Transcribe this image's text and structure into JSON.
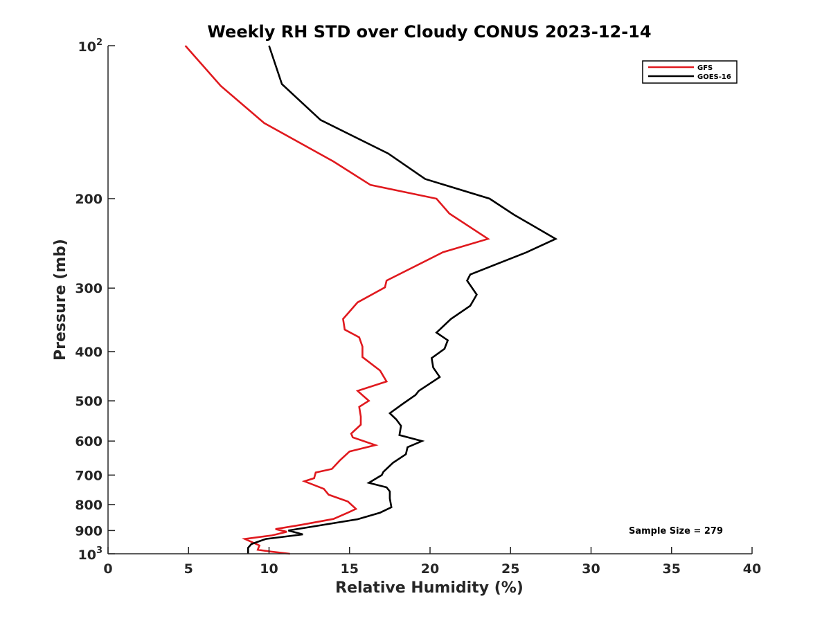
{
  "chart_data": {
    "type": "line",
    "title": "Weekly RH STD over Cloudy CONUS 2023-12-14",
    "xlabel": "Relative Humidity (%)",
    "ylabel": "Pressure (mb)",
    "xlim": [
      0,
      40
    ],
    "ylim": [
      100,
      1000
    ],
    "yscale": "log",
    "y_reversed": true,
    "grid": false,
    "legend_position": "top-right",
    "x_ticks": [
      0,
      5,
      10,
      15,
      20,
      25,
      30,
      35,
      40
    ],
    "x_tick_labels": [
      "0",
      "5",
      "10",
      "15",
      "20",
      "25",
      "30",
      "35",
      "40"
    ],
    "y_ticks": [
      {
        "value": 100,
        "base": "10",
        "exp": "2",
        "label": ""
      },
      {
        "value": 200,
        "label": "200"
      },
      {
        "value": 300,
        "label": "300"
      },
      {
        "value": 400,
        "label": "400"
      },
      {
        "value": 500,
        "label": "500"
      },
      {
        "value": 600,
        "label": "600"
      },
      {
        "value": 700,
        "label": "700"
      },
      {
        "value": 800,
        "label": "800"
      },
      {
        "value": 900,
        "label": "900"
      },
      {
        "value": 1000,
        "base": "10",
        "exp": "3",
        "label": ""
      }
    ],
    "annotation": "Sample Size = 279",
    "series": [
      {
        "name": "GFS",
        "color": "#e0191e",
        "points": [
          [
            4.8,
            100
          ],
          [
            7.0,
            120
          ],
          [
            9.7,
            142
          ],
          [
            14.0,
            169
          ],
          [
            16.3,
            188
          ],
          [
            20.4,
            200
          ],
          [
            21.2,
            214
          ],
          [
            23.6,
            240
          ],
          [
            20.8,
            255
          ],
          [
            17.3,
            290
          ],
          [
            17.2,
            299
          ],
          [
            15.5,
            320
          ],
          [
            14.6,
            345
          ],
          [
            14.7,
            362
          ],
          [
            15.6,
            375
          ],
          [
            15.8,
            391
          ],
          [
            15.8,
            410
          ],
          [
            16.9,
            436
          ],
          [
            17.3,
            458
          ],
          [
            15.5,
            478
          ],
          [
            16.2,
            500
          ],
          [
            15.6,
            514
          ],
          [
            15.7,
            537
          ],
          [
            15.7,
            557
          ],
          [
            15.1,
            580
          ],
          [
            15.2,
            590
          ],
          [
            16.6,
            611
          ],
          [
            15.0,
            629
          ],
          [
            14.4,
            655
          ],
          [
            13.9,
            681
          ],
          [
            12.9,
            692
          ],
          [
            12.8,
            710
          ],
          [
            12.2,
            720
          ],
          [
            13.4,
            745
          ],
          [
            13.7,
            765
          ],
          [
            14.9,
            789
          ],
          [
            15.4,
            816
          ],
          [
            14.9,
            830
          ],
          [
            14.0,
            854
          ],
          [
            12.0,
            877
          ],
          [
            10.4,
            894
          ],
          [
            11.1,
            905
          ],
          [
            10.2,
            920
          ],
          [
            8.5,
            935
          ],
          [
            9.4,
            963
          ],
          [
            9.3,
            982
          ],
          [
            10.1,
            990
          ],
          [
            11.3,
            1000
          ]
        ]
      },
      {
        "name": "GOES-16",
        "color": "#000000",
        "points": [
          [
            10.0,
            100
          ],
          [
            10.8,
            119
          ],
          [
            13.2,
            140
          ],
          [
            17.4,
            163
          ],
          [
            19.7,
            183
          ],
          [
            23.7,
            200
          ],
          [
            25.2,
            215
          ],
          [
            27.8,
            240
          ],
          [
            26.0,
            255
          ],
          [
            22.5,
            282
          ],
          [
            22.3,
            290
          ],
          [
            22.9,
            309
          ],
          [
            22.5,
            325
          ],
          [
            21.3,
            345
          ],
          [
            20.4,
            367
          ],
          [
            21.1,
            380
          ],
          [
            20.9,
            395
          ],
          [
            20.1,
            412
          ],
          [
            20.2,
            430
          ],
          [
            20.6,
            449
          ],
          [
            19.3,
            478
          ],
          [
            19.1,
            487
          ],
          [
            18.3,
            507
          ],
          [
            17.5,
            529
          ],
          [
            17.9,
            544
          ],
          [
            18.2,
            560
          ],
          [
            18.1,
            584
          ],
          [
            19.5,
            600
          ],
          [
            18.6,
            617
          ],
          [
            18.5,
            637
          ],
          [
            17.7,
            662
          ],
          [
            17.1,
            690
          ],
          [
            17.0,
            700
          ],
          [
            16.2,
            725
          ],
          [
            17.3,
            740
          ],
          [
            17.5,
            754
          ],
          [
            17.5,
            778
          ],
          [
            17.6,
            810
          ],
          [
            16.9,
            830
          ],
          [
            15.5,
            855
          ],
          [
            12.6,
            885
          ],
          [
            11.2,
            900
          ],
          [
            12.1,
            916
          ],
          [
            9.8,
            935
          ],
          [
            8.9,
            957
          ],
          [
            8.7,
            973
          ],
          [
            8.7,
            1000
          ]
        ]
      }
    ]
  }
}
